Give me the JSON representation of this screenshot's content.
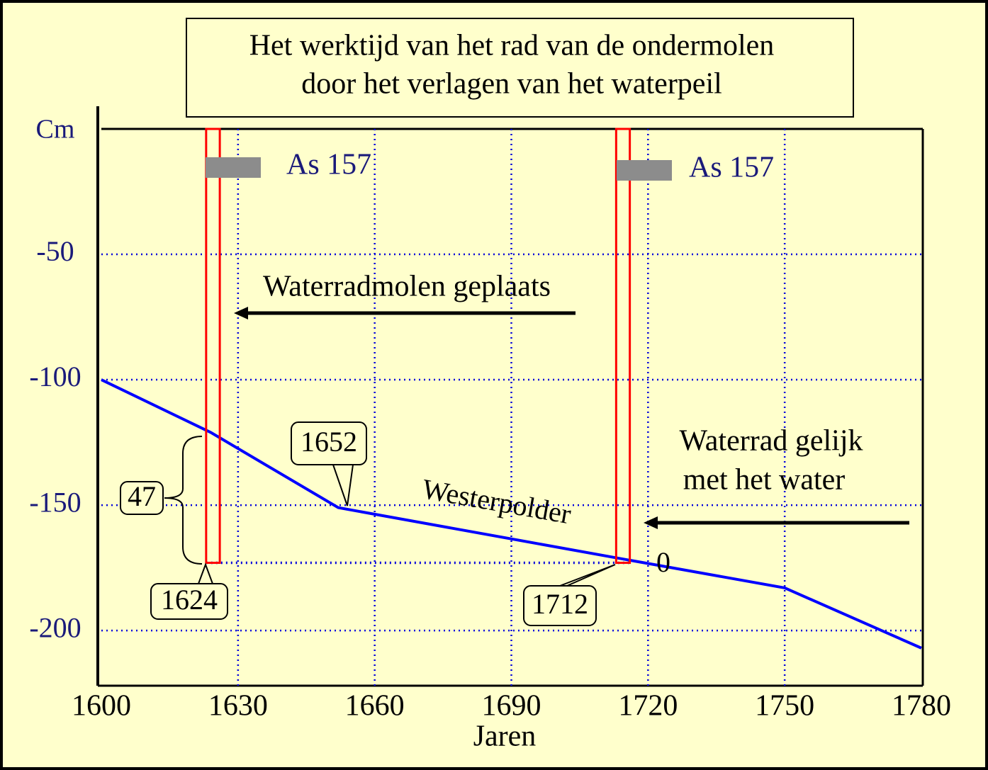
{
  "chart_data": {
    "type": "line",
    "title": [
      "Het werktijd van het rad van de ondermolen",
      "door het verlagen van het waterpeil"
    ],
    "x_label": "Jaren",
    "y_label": "Cm",
    "xlim": [
      1600,
      1780
    ],
    "xticks": [
      1600,
      1630,
      1660,
      1690,
      1720,
      1750,
      1780
    ],
    "ylim": [
      -222,
      0
    ],
    "yticks": [
      -50,
      -100,
      -150,
      -200
    ],
    "grid": true,
    "series": [
      {
        "name": "Westerpolder",
        "color": "#0000ff",
        "x": [
          1600,
          1624,
          1652,
          1713,
          1750,
          1780
        ],
        "values": [
          -100,
          -121,
          -151,
          -171,
          -183,
          -207
        ]
      }
    ],
    "wheels": [
      {
        "start": 1623,
        "end": 1626,
        "top": 0,
        "bottom": -173,
        "color": "#ff0000",
        "label": "As 157"
      },
      {
        "start": 1713,
        "end": 1716,
        "top": 0,
        "bottom": -173,
        "color": "#ff0000",
        "label": "As 157"
      }
    ],
    "level": -173,
    "annotations": [
      "Waterradmolen geplaats",
      "Waterrad gelijk",
      "met het water",
      "1652",
      "1624",
      "1712",
      "47",
      "0"
    ]
  }
}
